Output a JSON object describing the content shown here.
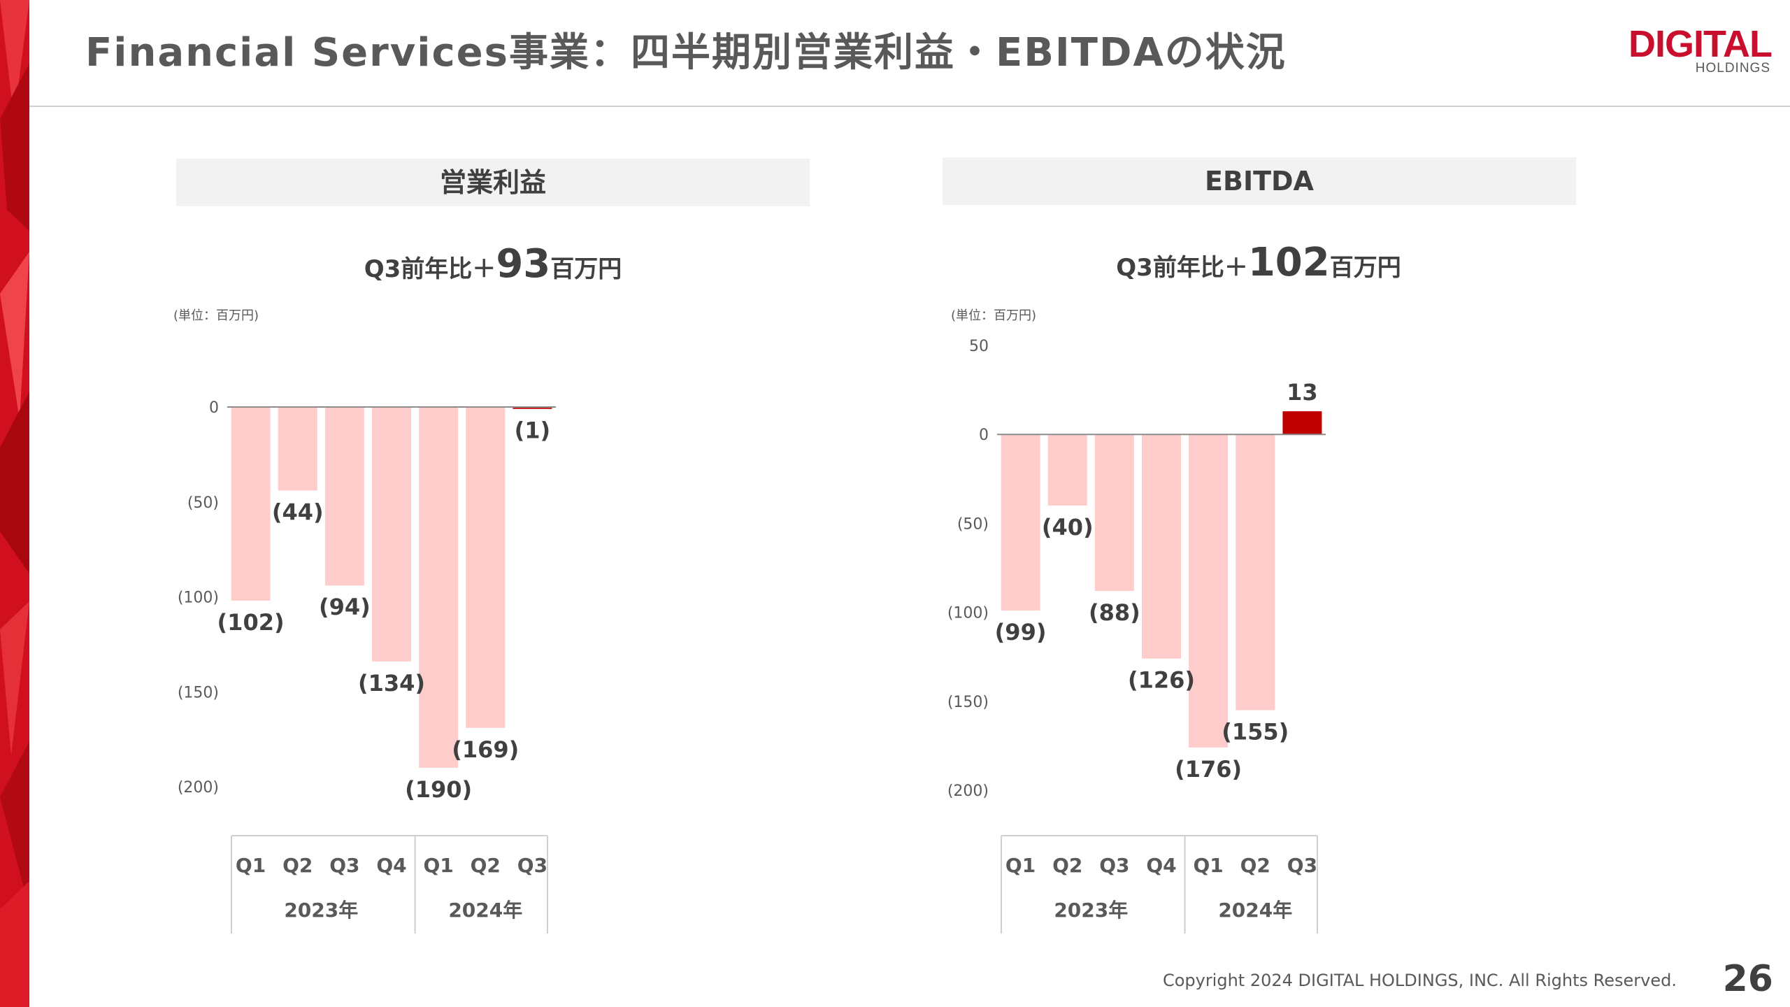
{
  "title": "Financial Services事業：四半期別営業利益・EBITDAの状況",
  "logo": {
    "word": "DIGITAL",
    "sub": "HOLDINGS"
  },
  "footer": {
    "copyright": "Copyright 2024 DIGITAL HOLDINGS, INC. All Rights Reserved.",
    "page": "26"
  },
  "colors": {
    "negative_bar": "#ffcccc",
    "positive_bar": "#c00000",
    "accent": "#c8102e"
  },
  "left_panel": {
    "header": "営業利益",
    "subhead_pre": "Q3前年比＋",
    "subhead_num": "93",
    "subhead_post": "百万円",
    "unit": "(単位：百万円)"
  },
  "right_panel": {
    "header": "EBITDA",
    "subhead_pre": "Q3前年比＋",
    "subhead_num": "102",
    "subhead_post": "百万円",
    "unit": "(単位：百万円)"
  },
  "chart_data": [
    {
      "type": "bar",
      "title": "営業利益",
      "categories": [
        "Q1",
        "Q2",
        "Q3",
        "Q4",
        "Q1",
        "Q2",
        "Q3"
      ],
      "groups": [
        {
          "label": "2023年",
          "span": 4
        },
        {
          "label": "2024年",
          "span": 3
        }
      ],
      "values": [
        -102,
        -44,
        -94,
        -134,
        -190,
        -169,
        -1
      ],
      "data_labels": [
        "(102)",
        "(44)",
        "(94)",
        "(134)",
        "(190)",
        "(169)",
        "(1)"
      ],
      "highlight_index": 6,
      "ylim": [
        -200,
        0
      ],
      "yticks": [
        0,
        -50,
        -100,
        -150,
        -200
      ],
      "ytick_labels": [
        "0",
        "(50)",
        "(100)",
        "(150)",
        "(200)"
      ]
    },
    {
      "type": "bar",
      "title": "EBITDA",
      "categories": [
        "Q1",
        "Q2",
        "Q3",
        "Q4",
        "Q1",
        "Q2",
        "Q3"
      ],
      "groups": [
        {
          "label": "2023年",
          "span": 4
        },
        {
          "label": "2024年",
          "span": 3
        }
      ],
      "values": [
        -99,
        -40,
        -88,
        -126,
        -176,
        -155,
        13
      ],
      "data_labels": [
        "(99)",
        "(40)",
        "(88)",
        "(126)",
        "(176)",
        "(155)",
        "13"
      ],
      "highlight_index": 6,
      "ylim": [
        -200,
        50
      ],
      "yticks": [
        50,
        0,
        -50,
        -100,
        -150,
        -200
      ],
      "ytick_labels": [
        "50",
        "0",
        "(50)",
        "(100)",
        "(150)",
        "(200)"
      ]
    }
  ]
}
